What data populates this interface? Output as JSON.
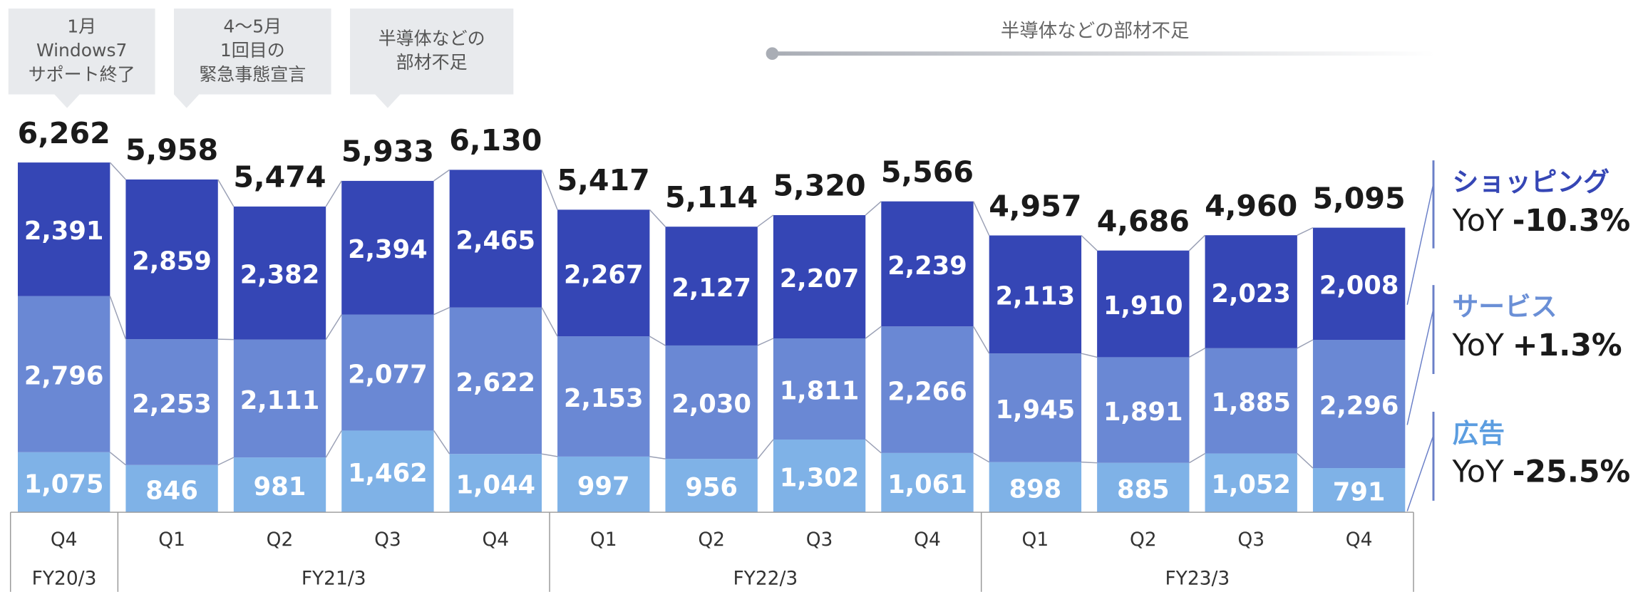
{
  "chart_data": {
    "type": "stacked_bar",
    "categories": [
      "Q4",
      "Q1",
      "Q2",
      "Q3",
      "Q4",
      "Q1",
      "Q2",
      "Q3",
      "Q4",
      "Q1",
      "Q2",
      "Q3",
      "Q4"
    ],
    "groups": [
      {
        "label": "FY20/3",
        "count": 1
      },
      {
        "label": "FY21/3",
        "count": 4
      },
      {
        "label": "FY22/3",
        "count": 4
      },
      {
        "label": "FY23/3",
        "count": 4
      }
    ],
    "series": [
      {
        "name": "広告",
        "color": "#7fb2e7",
        "legend_color": "#5b9de0",
        "yoy_label": "-25.5%",
        "values": [
          1075,
          846,
          981,
          1462,
          1044,
          997,
          956,
          1302,
          1061,
          898,
          885,
          1052,
          791
        ],
        "value_labels": [
          "1,075",
          "846",
          "981",
          "1,462",
          "1,044",
          "997",
          "956",
          "1,302",
          "1,061",
          "898",
          "885",
          "1,052",
          "791"
        ]
      },
      {
        "name": "サービス",
        "color": "#6a88d4",
        "legend_color": "#6a8fd6",
        "yoy_label": "+1.3%",
        "values": [
          2796,
          2253,
          2111,
          2077,
          2622,
          2153,
          2030,
          1811,
          2266,
          1945,
          1891,
          1885,
          2296
        ],
        "value_labels": [
          "2,796",
          "2,253",
          "2,111",
          "2,077",
          "2,622",
          "2,153",
          "2,030",
          "1,811",
          "2,266",
          "1,945",
          "1,891",
          "1,885",
          "2,296"
        ]
      },
      {
        "name": "ショッピング",
        "color": "#3546b5",
        "legend_color": "#3546b5",
        "yoy_label": "-10.3%",
        "values": [
          2391,
          2859,
          2382,
          2394,
          2465,
          2267,
          2127,
          2207,
          2239,
          2113,
          1910,
          2023,
          2008
        ],
        "value_labels": [
          "2,391",
          "2,859",
          "2,382",
          "2,394",
          "2,465",
          "2,267",
          "2,127",
          "2,207",
          "2,239",
          "2,113",
          "1,910",
          "2,023",
          "2,008"
        ]
      }
    ],
    "totals": [
      6262,
      5958,
      5474,
      5933,
      6130,
      5417,
      5114,
      5320,
      5566,
      4957,
      4686,
      4960,
      5095
    ],
    "total_labels": [
      "6,262",
      "5,958",
      "5,474",
      "5,933",
      "6,130",
      "5,417",
      "5,114",
      "5,320",
      "5,566",
      "4,957",
      "4,686",
      "4,960",
      "5,095"
    ],
    "yoy_prefix": "YoY",
    "ylim": [
      0,
      9000
    ],
    "callouts": [
      {
        "category": 0,
        "lines": [
          "1月",
          "Windows7",
          "サポート終了"
        ]
      },
      {
        "category": 1,
        "lines": [
          "4〜5月",
          "1回目の",
          "緊急事態宣言"
        ]
      },
      {
        "category": 3,
        "lines": [
          "半導体などの",
          "部材不足"
        ]
      }
    ],
    "span_annotation": {
      "text": "半導体などの部材不足",
      "from_category": 7
    }
  }
}
